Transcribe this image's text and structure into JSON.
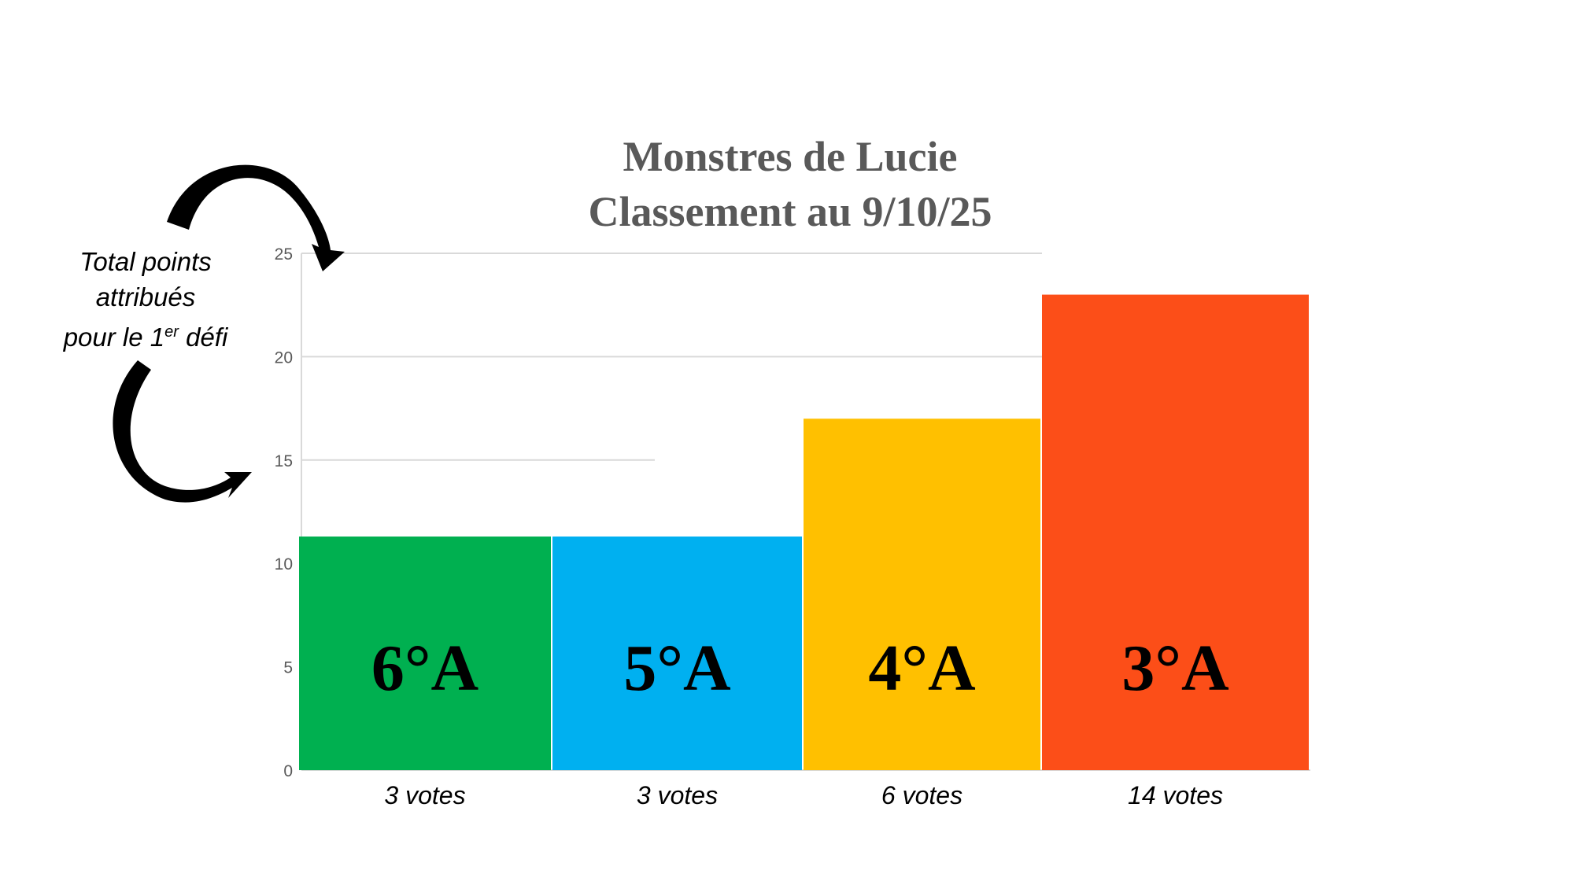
{
  "chart_data": {
    "type": "bar",
    "title": [
      "Monstres de Lucie",
      "Classement au 9/10/25"
    ],
    "categories": [
      "6°A",
      "5°A",
      "4°A",
      "3°A"
    ],
    "values": [
      11.3,
      11.3,
      17,
      23
    ],
    "colors": [
      "#00B050",
      "#00B0F0",
      "#FFC000",
      "#FC4E18"
    ],
    "vote_labels": [
      "3 votes",
      "3 votes",
      "6 votes",
      "14 votes"
    ],
    "ylim": [
      0,
      25
    ],
    "yticks": [
      0,
      5,
      10,
      15,
      20,
      25
    ],
    "grid": true,
    "annotation": {
      "line1": "Total points",
      "line2": "attribués",
      "line3_pre": "pour le 1",
      "line3_sup": "er",
      "line3_post": " défi"
    }
  }
}
